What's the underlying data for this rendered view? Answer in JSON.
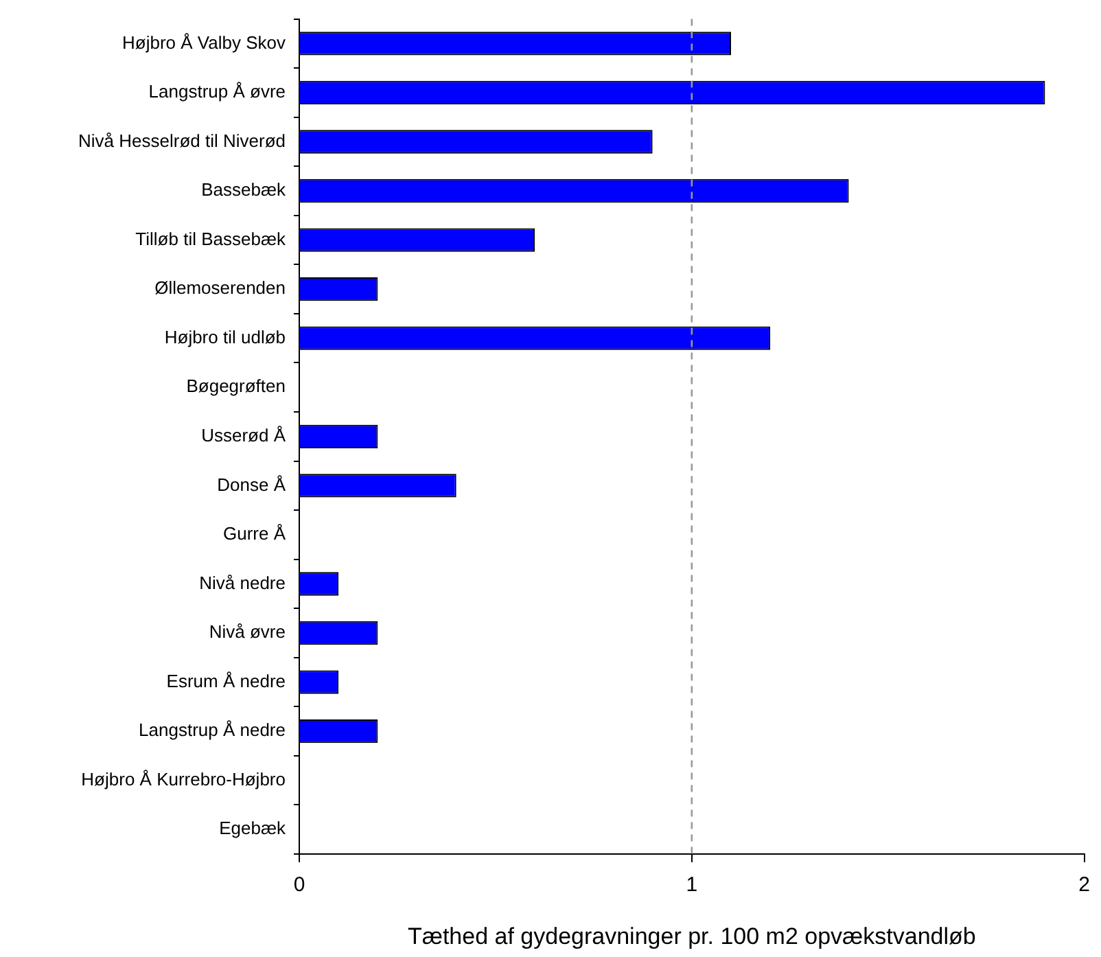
{
  "chart_data": {
    "type": "bar",
    "orientation": "horizontal",
    "categories": [
      "Højbro Å Valby Skov",
      "Langstrup Å øvre",
      "Nivå Hesselrød til Niverød",
      "Bassebæk",
      "Tilløb til Bassebæk",
      "Øllemoserenden",
      "Højbro til udløb",
      "Bøgegrøften",
      "Usserød Å",
      "Donse Å",
      "Gurre Å",
      "Nivå nedre",
      "Nivå øvre",
      "Esrum Å nedre",
      "Langstrup Å nedre",
      "Højbro Å Kurrebro-Højbro",
      "Egebæk"
    ],
    "values": [
      1.1,
      1.9,
      0.9,
      1.4,
      0.6,
      0.2,
      1.2,
      0,
      0.2,
      0.4,
      0,
      0.1,
      0.2,
      0.1,
      0.2,
      0,
      0
    ],
    "color": "#0000ff",
    "xlim": [
      0,
      2
    ],
    "xticks": [
      0,
      1,
      2
    ],
    "xlabel": "Tæthed af gydegravninger pr. 100 m2 opvækstvandløb",
    "ref_lines": [
      {
        "axis": "x",
        "value": 1,
        "color": "#999999",
        "line_style": "dashed"
      }
    ],
    "grid": false,
    "legend": false
  }
}
